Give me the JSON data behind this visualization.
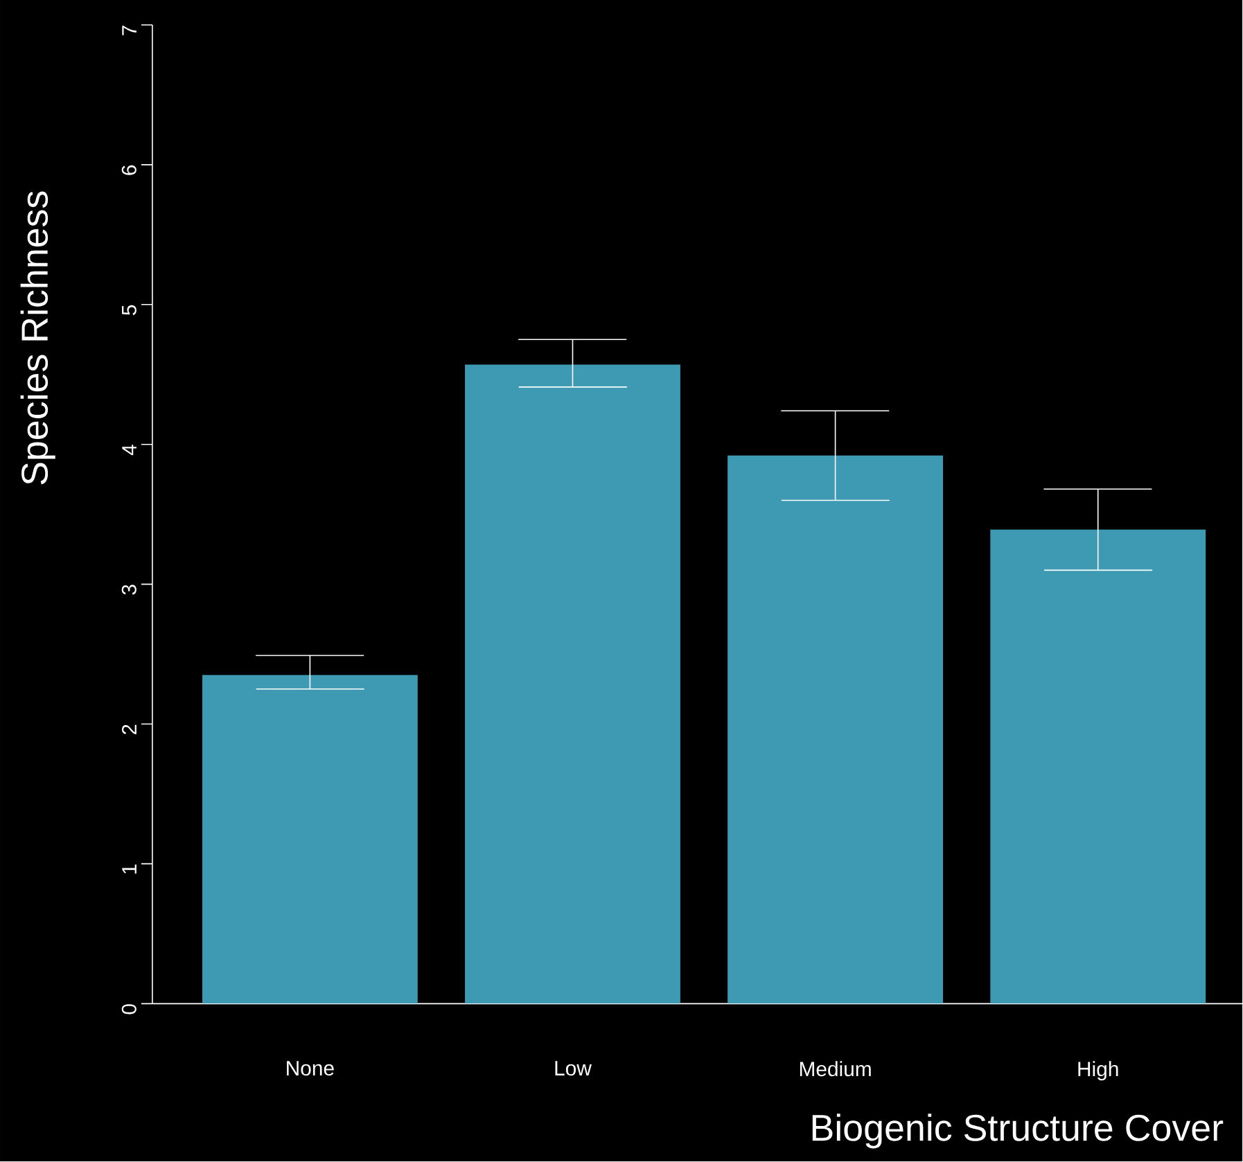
{
  "chart_data": {
    "type": "bar",
    "xlabel": "Biogenic Structure Cover",
    "ylabel": "Species Richness",
    "categories": [
      "None",
      "Low",
      "Medium",
      "High"
    ],
    "values": [
      2.35,
      4.57,
      3.92,
      3.39
    ],
    "errors": [
      [
        2.25,
        2.49
      ],
      [
        4.41,
        4.75
      ],
      [
        3.6,
        4.24
      ],
      [
        3.1,
        3.68
      ]
    ],
    "color": "#3e9ab3",
    "ylim": [
      0,
      7
    ],
    "yticks": [
      0,
      1,
      2,
      3,
      4,
      5,
      6,
      7
    ],
    "grid": false
  }
}
